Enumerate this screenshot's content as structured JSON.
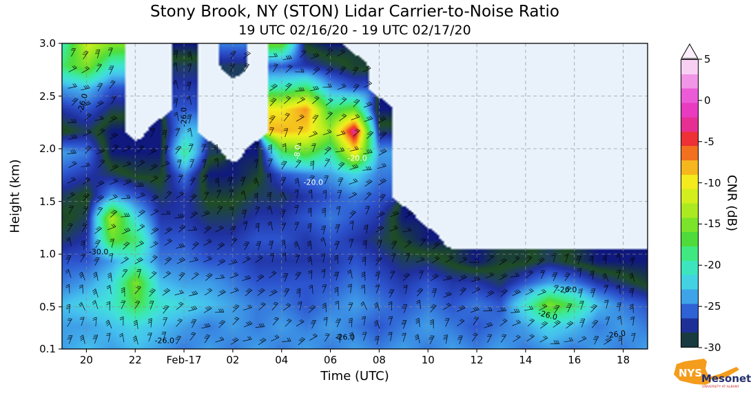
{
  "title": "Stony Brook, NY (STON) Lidar Carrier-to-Noise Ratio",
  "subtitle": "19 UTC 02/16/20 - 19 UTC 02/17/20",
  "axes": {
    "x_label": "Time (UTC)",
    "y_label": "Height (km)",
    "xlim_hours_since_19utc": [
      0,
      24
    ],
    "ylim_km": [
      0.1,
      3.0
    ],
    "grid": "dashed",
    "x_ticks": [
      {
        "hour": 1,
        "label": "20"
      },
      {
        "hour": 3,
        "label": "22"
      },
      {
        "hour": 5,
        "label": "Feb-17"
      },
      {
        "hour": 7,
        "label": "02"
      },
      {
        "hour": 9,
        "label": "04"
      },
      {
        "hour": 11,
        "label": "06"
      },
      {
        "hour": 13,
        "label": "08"
      },
      {
        "hour": 15,
        "label": "10"
      },
      {
        "hour": 17,
        "label": "12"
      },
      {
        "hour": 19,
        "label": "14"
      },
      {
        "hour": 21,
        "label": "16"
      },
      {
        "hour": 23,
        "label": "18"
      }
    ],
    "y_ticks": [
      {
        "km": 3.0,
        "label": "3.0"
      },
      {
        "km": 2.5,
        "label": "2.5"
      },
      {
        "km": 2.0,
        "label": "2.0"
      },
      {
        "km": 1.5,
        "label": "1.5"
      },
      {
        "km": 1.0,
        "label": "1.0"
      },
      {
        "km": 0.5,
        "label": "0.5"
      },
      {
        "km": 0.1,
        "label": "0.1"
      }
    ]
  },
  "colorbar": {
    "label": "CNR (dB)",
    "min": -30,
    "max": 5,
    "over_arrow": true,
    "ticks": [
      {
        "v": 5,
        "label": "5"
      },
      {
        "v": 0,
        "label": "0"
      },
      {
        "v": -5,
        "label": "-5"
      },
      {
        "v": -10,
        "label": "-10"
      },
      {
        "v": -15,
        "label": "-15"
      },
      {
        "v": -20,
        "label": "-20"
      },
      {
        "v": -25,
        "label": "-25"
      },
      {
        "v": -30,
        "label": "-30"
      }
    ],
    "stops": [
      {
        "v": -30.0,
        "c": "#10197d"
      },
      {
        "v": -28.7,
        "c": "#1e4d21"
      },
      {
        "v": -27.3,
        "c": "#1f2f9e"
      },
      {
        "v": -26.0,
        "c": "#2c54cf"
      },
      {
        "v": -24.5,
        "c": "#3b8ee4"
      },
      {
        "v": -23.0,
        "c": "#45c1ee"
      },
      {
        "v": -21.5,
        "c": "#41dfdb"
      },
      {
        "v": -20.0,
        "c": "#3be8b4"
      },
      {
        "v": -18.5,
        "c": "#41e87e"
      },
      {
        "v": -17.0,
        "c": "#4cdc3c"
      },
      {
        "v": -15.0,
        "c": "#7fe428"
      },
      {
        "v": -12.5,
        "c": "#c3ee1e"
      },
      {
        "v": -10.0,
        "c": "#f3ef1d"
      },
      {
        "v": -7.5,
        "c": "#f7a41e"
      },
      {
        "v": -5.0,
        "c": "#ef3222"
      },
      {
        "v": -2.5,
        "c": "#e62fa8"
      },
      {
        "v": 0.0,
        "c": "#ea46d2"
      },
      {
        "v": 2.5,
        "c": "#f29ae8"
      },
      {
        "v": 5.0,
        "c": "#fceefb"
      }
    ]
  },
  "chart_data": {
    "type": "heatmap",
    "title": "Stony Brook, NY (STON) Lidar Carrier-to-Noise Ratio",
    "xlabel": "Time (UTC)",
    "ylabel": "Height (km)",
    "colorbar_label": "CNR (dB)",
    "clim": [
      -30,
      5
    ],
    "xlim": [
      0,
      24
    ],
    "ylim": [
      0.1,
      3.0
    ],
    "x_unit": "hours since 19 UTC 02/16/20",
    "no_data_color": "#e9f2fa",
    "x": [
      0,
      1,
      2,
      3,
      4,
      5,
      6,
      7,
      8,
      9,
      10,
      11,
      12,
      13,
      14,
      15,
      16,
      17,
      18,
      19,
      20,
      21,
      22,
      23,
      24
    ],
    "y": [
      0.1,
      0.3,
      0.5,
      0.7,
      0.9,
      1.1,
      1.3,
      1.5,
      1.7,
      1.9,
      2.1,
      2.3,
      2.5,
      2.7,
      2.9
    ],
    "values": [
      [
        -24,
        -24,
        -23,
        -25,
        -26,
        -28,
        -29,
        -28,
        -26,
        -24,
        -29,
        -27,
        -24,
        -18,
        -20
      ],
      [
        -23,
        -24,
        -22,
        -24,
        -26,
        -27,
        -28,
        -29,
        -27,
        -25,
        -28,
        -26,
        -23,
        -15,
        -12
      ],
      [
        -24,
        -23,
        -21,
        -22,
        -24,
        -16,
        -13,
        -24,
        -28,
        -30,
        -30,
        -28,
        -26,
        -21,
        -15
      ],
      [
        -23,
        -22,
        -17,
        -15,
        -21,
        -18,
        -22,
        -26,
        -29,
        -30,
        null,
        null,
        null,
        null,
        null
      ],
      [
        -24,
        -23,
        -21,
        -23,
        -25,
        -26,
        -27,
        -28,
        -29,
        -30,
        -30,
        null,
        null,
        null,
        null
      ],
      [
        -25,
        -24,
        -22,
        -24,
        -25,
        -26,
        -27,
        -27,
        -25,
        -19,
        -23,
        -26,
        -27,
        -28,
        -30
      ],
      [
        -24,
        -25,
        -23,
        -24,
        -26,
        -27,
        -28,
        -29,
        -30,
        -28,
        null,
        null,
        null,
        null,
        null
      ],
      [
        -25,
        -24,
        -24,
        -25,
        -26,
        -27,
        -28,
        -29,
        -30,
        null,
        null,
        null,
        null,
        -28,
        -25
      ],
      [
        -24,
        -25,
        -25,
        -26,
        -27,
        -26,
        -27,
        -28,
        -29,
        -30,
        null,
        null,
        null,
        null,
        null
      ],
      [
        -25,
        -24,
        -25,
        -26,
        -27,
        -26,
        -27,
        -28,
        -26,
        -18,
        -8,
        -10,
        -20,
        -26,
        -16
      ],
      [
        -24,
        -25,
        -26,
        -26,
        -27,
        -27,
        -26,
        -27,
        -25,
        -16,
        -9,
        -7,
        -18,
        -27,
        -29
      ],
      [
        -25,
        -24,
        -25,
        -26,
        -27,
        -26,
        -25,
        -26,
        -24,
        -20,
        -14,
        -18,
        -24,
        -28,
        -30
      ],
      [
        -24,
        -25,
        -24,
        -25,
        -26,
        -27,
        -26,
        -25,
        -22,
        -10,
        -2,
        -16,
        -26,
        -29,
        null
      ],
      [
        -25,
        -26,
        -25,
        -26,
        -27,
        -28,
        -27,
        -26,
        -25,
        -24,
        -28,
        -30,
        null,
        null,
        null
      ],
      [
        -24,
        -25,
        -26,
        -27,
        -28,
        -29,
        -30,
        null,
        null,
        null,
        null,
        null,
        null,
        null,
        null
      ],
      [
        -25,
        -24,
        -25,
        -26,
        -28,
        -30,
        null,
        null,
        null,
        null,
        null,
        null,
        null,
        null,
        null
      ],
      [
        -24,
        -25,
        -26,
        -27,
        -29,
        null,
        null,
        null,
        null,
        null,
        null,
        null,
        null,
        null,
        null
      ],
      [
        -25,
        -26,
        -25,
        -27,
        -30,
        null,
        null,
        null,
        null,
        null,
        null,
        null,
        null,
        null,
        null
      ],
      [
        -24,
        -25,
        -26,
        -28,
        -29,
        null,
        null,
        null,
        null,
        null,
        null,
        null,
        null,
        null,
        null
      ],
      [
        -25,
        -24,
        -21,
        -26,
        -29,
        null,
        null,
        null,
        null,
        null,
        null,
        null,
        null,
        null,
        null
      ],
      [
        -24,
        -22,
        -15,
        -24,
        -28,
        null,
        null,
        null,
        null,
        null,
        null,
        null,
        null,
        null,
        null
      ],
      [
        -25,
        -23,
        -18,
        -25,
        -29,
        null,
        null,
        null,
        null,
        null,
        null,
        null,
        null,
        null,
        null
      ],
      [
        -24,
        -25,
        -23,
        -27,
        -30,
        null,
        null,
        null,
        null,
        null,
        null,
        null,
        null,
        null,
        null
      ],
      [
        -25,
        -24,
        -25,
        -28,
        -30,
        null,
        null,
        null,
        null,
        null,
        null,
        null,
        null,
        null,
        null
      ],
      [
        -24,
        -25,
        -26,
        -29,
        -30,
        null,
        null,
        null,
        null,
        null,
        null,
        null,
        null,
        null,
        null
      ]
    ]
  },
  "contour_labels": [
    {
      "text": "-26.0",
      "hour": 4.2,
      "km": 0.18,
      "color": "#000000",
      "rotate": 0
    },
    {
      "text": "-26.0",
      "hour": 11.6,
      "km": 0.21,
      "color": "#000000",
      "rotate": 0
    },
    {
      "text": "-26.0",
      "hour": 22.7,
      "km": 0.24,
      "color": "#000000",
      "rotate": -8
    },
    {
      "text": "-26.0",
      "hour": 20.7,
      "km": 0.66,
      "color": "#000000",
      "rotate": 0
    },
    {
      "text": "-26.0",
      "hour": 19.9,
      "km": 0.42,
      "color": "#000000",
      "rotate": 14
    },
    {
      "text": "-26.0",
      "hour": 5.0,
      "km": 2.3,
      "color": "#000000",
      "rotate": -90
    },
    {
      "text": "-26.0",
      "hour": 0.85,
      "km": 2.43,
      "color": "#000000",
      "rotate": -75
    },
    {
      "text": "-30.0",
      "hour": 1.5,
      "km": 1.02,
      "color": "#000000",
      "rotate": 0
    },
    {
      "text": "-20.0",
      "hour": 10.3,
      "km": 1.68,
      "color": "#ffffff",
      "rotate": 0
    },
    {
      "text": "-8.0",
      "hour": 9.65,
      "km": 1.97,
      "color": "#ffffff",
      "rotate": -85
    },
    {
      "text": "-20.0",
      "hour": 12.1,
      "km": 1.91,
      "color": "#ffffff",
      "rotate": 0
    }
  ],
  "wind_barbs": {
    "present": true,
    "color": "#000000",
    "coverage": "everywhere lidar signal exists",
    "approx_spacing_hours": 0.55,
    "approx_spacing_km": 0.15
  },
  "logo": {
    "nys": "NYS",
    "mesonet": "Mesonet",
    "tagline": "UNIVERSITY AT ALBANY"
  }
}
